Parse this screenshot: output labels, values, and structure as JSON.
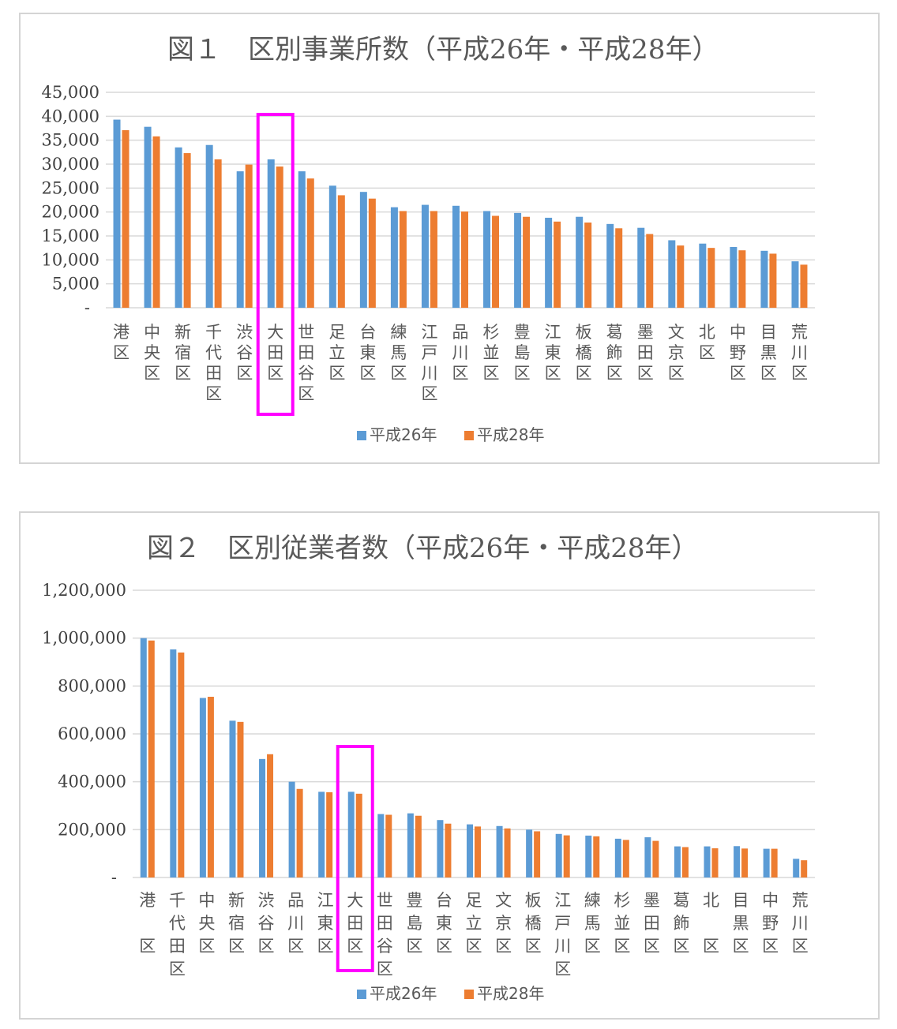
{
  "chart_data": [
    {
      "type": "bar",
      "title": "図１　区別事業所数（平成26年・平成28年）",
      "categories": [
        "港区",
        "中央区",
        "新宿区",
        "千代田区",
        "渋谷区",
        "大田区",
        "世田谷区",
        "足立区",
        "台東区",
        "練馬区",
        "江戸川区",
        "品川区",
        "杉並区",
        "豊島区",
        "江東区",
        "板橋区",
        "葛飾区",
        "墨田区",
        "文京区",
        "北区",
        "中野区",
        "目黒区",
        "荒川区"
      ],
      "series": [
        {
          "name": "平成26年",
          "values": [
            39300,
            37800,
            33500,
            34000,
            28500,
            31000,
            28500,
            25500,
            24200,
            21000,
            21500,
            21300,
            20200,
            19800,
            18800,
            19000,
            17500,
            16700,
            14100,
            13400,
            12700,
            11900,
            9700
          ]
        },
        {
          "name": "平成28年",
          "values": [
            37100,
            35800,
            32300,
            31000,
            29900,
            29500,
            27000,
            23500,
            22800,
            20200,
            20200,
            20100,
            19200,
            19000,
            18000,
            17800,
            16600,
            15400,
            13000,
            12500,
            12000,
            11300,
            9000
          ]
        }
      ],
      "ylim": [
        0,
        45000
      ],
      "yticks": [
        "45,000",
        "40,000",
        "35,000",
        "30,000",
        "25,000",
        "20,000",
        "15,000",
        "10,000",
        "5,000",
        "-"
      ],
      "highlight": "大田区",
      "legend": [
        "平成26年",
        "平成28年"
      ],
      "legend_position": "bottom",
      "grid": true
    },
    {
      "type": "bar",
      "title": "図２　区別従業者数（平成26年・平成28年）",
      "categories": [
        "港区",
        "千代田区",
        "中央区",
        "新宿区",
        "渋谷区",
        "品川区",
        "江東区",
        "大田区",
        "世田谷区",
        "豊島区",
        "台東区",
        "足立区",
        "文京区",
        "板橋区",
        "江戸川区",
        "練馬区",
        "杉並区",
        "墨田区",
        "葛飾区",
        "北区",
        "目黒区",
        "中野区",
        "荒川区"
      ],
      "series": [
        {
          "name": "平成26年",
          "values": [
            1000000,
            953000,
            750000,
            655000,
            495000,
            400000,
            358000,
            358000,
            265000,
            268000,
            240000,
            222000,
            215000,
            200000,
            182000,
            175000,
            162000,
            168000,
            130000,
            130000,
            131000,
            120000,
            78000
          ]
        },
        {
          "name": "平成28年",
          "values": [
            990000,
            940000,
            755000,
            650000,
            515000,
            370000,
            356000,
            350000,
            262000,
            258000,
            225000,
            213000,
            205000,
            193000,
            176000,
            172000,
            157000,
            153000,
            127000,
            122000,
            121000,
            120000,
            72000
          ]
        }
      ],
      "ylim": [
        0,
        1200000
      ],
      "yticks": [
        "1,200,000",
        "1,000,000",
        "800,000",
        "600,000",
        "400,000",
        "200,000",
        "-"
      ],
      "highlight": "大田区",
      "legend": [
        "平成26年",
        "平成28年"
      ],
      "legend_position": "bottom",
      "grid": true
    }
  ],
  "colors": {
    "series1": "#5b9bd5",
    "series2": "#ed7d31",
    "highlight": "#ff00ff",
    "grid": "#d9d9d9"
  }
}
